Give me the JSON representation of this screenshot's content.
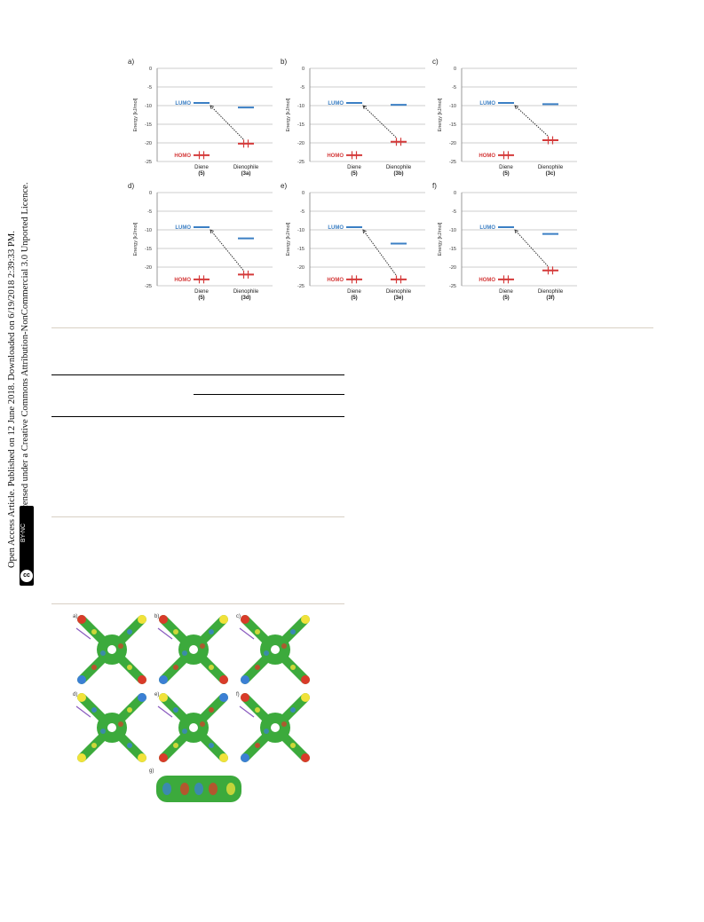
{
  "license": {
    "line1": "Open Access Article. Published on 12 June 2018. Downloaded on 6/19/2018 2:39:33 PM.",
    "line2": "This article is licensed under a Creative Commons Attribution-NonCommercial 3.0 Unported Licence.",
    "badge_cc": "cc",
    "badge_by": "BY-NC"
  },
  "energy_figure": {
    "chart_data": [
      {
        "type": "bar",
        "panel": "a)",
        "ylabel": "Energy [kJ/mol]",
        "ylim": [
          -25,
          0
        ],
        "yticks": [
          0,
          -5,
          -10,
          -15,
          -20,
          -25
        ],
        "categories": [
          "Diene\n(5)",
          "Dienophile\n(3a)"
        ],
        "lumo": [
          -9.3,
          -10.5
        ],
        "homo": [
          -23.3,
          -20.2
        ],
        "labels": {
          "lumo": "LUMO",
          "homo": "HOMO"
        },
        "x1": "Diene",
        "x1b": "(5)",
        "x2": "Dienophile",
        "x2b": "(3a)"
      },
      {
        "type": "bar",
        "panel": "b)",
        "ylabel": "Energy [kJ/mol]",
        "ylim": [
          -25,
          0
        ],
        "yticks": [
          0,
          -5,
          -10,
          -15,
          -20,
          -25
        ],
        "lumo": [
          -9.3,
          -9.8
        ],
        "homo": [
          -23.3,
          -19.7
        ],
        "labels": {
          "lumo": "LUMO",
          "homo": "HOMO"
        },
        "x1": "Diene",
        "x1b": "(5)",
        "x2": "Dienophile",
        "x2b": "(3b)"
      },
      {
        "type": "bar",
        "panel": "c)",
        "ylabel": "Energy [kJ/mol]",
        "ylim": [
          -25,
          0
        ],
        "yticks": [
          0,
          -5,
          -10,
          -15,
          -20,
          -25
        ],
        "lumo": [
          -9.3,
          -9.6
        ],
        "homo": [
          -23.3,
          -19.3
        ],
        "labels": {
          "lumo": "LUMO",
          "homo": "HOMO"
        },
        "x1": "Diene",
        "x1b": "(5)",
        "x2": "Dienophile",
        "x2b": "(3c)"
      },
      {
        "type": "bar",
        "panel": "d)",
        "ylabel": "Energy [kJ/mol]",
        "ylim": [
          -25,
          0
        ],
        "yticks": [
          0,
          -5,
          -10,
          -15,
          -20,
          -25
        ],
        "lumo": [
          -9.3,
          -12.3
        ],
        "homo": [
          -23.3,
          -22.0
        ],
        "labels": {
          "lumo": "LUMO",
          "homo": "HOMO"
        },
        "x1": "Diene",
        "x1b": "(5)",
        "x2": "Dienophile",
        "x2b": "(3d)"
      },
      {
        "type": "bar",
        "panel": "e)",
        "ylabel": "Energy [kJ/mol]",
        "ylim": [
          -25,
          0
        ],
        "yticks": [
          0,
          -5,
          -10,
          -15,
          -20,
          -25
        ],
        "lumo": [
          -9.3,
          -13.7
        ],
        "homo": [
          -23.3,
          -23.3
        ],
        "labels": {
          "lumo": "LUMO",
          "homo": "HOMO"
        },
        "x1": "Diene",
        "x1b": "(5)",
        "x2": "Dienophile",
        "x2b": "(3e)"
      },
      {
        "type": "bar",
        "panel": "f)",
        "ylabel": "Energy [kJ/mol]",
        "ylim": [
          -25,
          0
        ],
        "yticks": [
          0,
          -5,
          -10,
          -15,
          -20,
          -25
        ],
        "lumo": [
          -9.3,
          -11.1
        ],
        "homo": [
          -23.3,
          -20.9
        ],
        "labels": {
          "lumo": "LUMO",
          "homo": "HOMO"
        },
        "x1": "Diene",
        "x1b": "(5)",
        "x2": "Dienophile",
        "x2b": "(3f)"
      }
    ]
  },
  "mep_figure": {
    "labels": [
      "a)",
      "b)",
      "c)",
      "d)",
      "e)",
      "f)",
      "g)"
    ]
  },
  "colors": {
    "lumo": "#3b7fc4",
    "homo": "#d43a3a",
    "grid": "#9a9a9a",
    "divider": "#d8d0c4",
    "green": "#3caa3c"
  }
}
